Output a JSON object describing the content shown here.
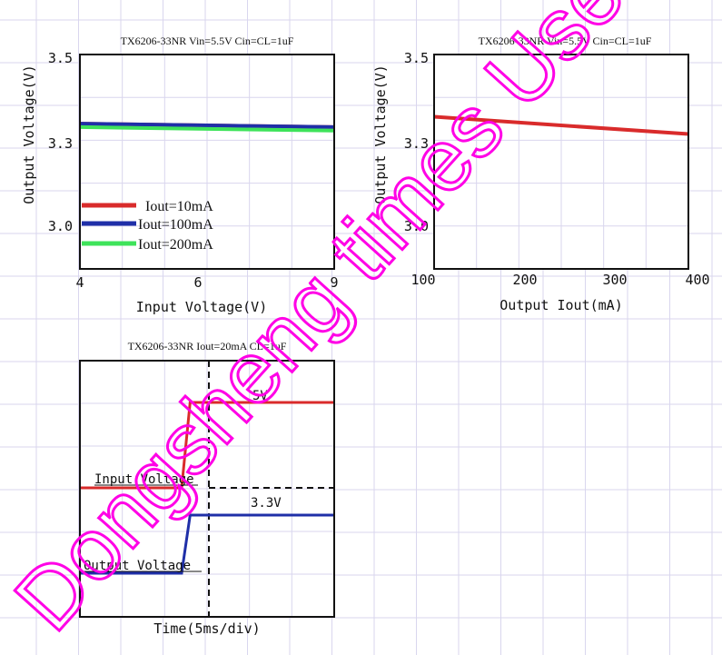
{
  "colors": {
    "grid": "#d9d6ee",
    "red": "#d92b2b",
    "blue": "#1f2fa8",
    "green": "#3ee35a",
    "axis": "#111111",
    "watermark": "#ff00e6"
  },
  "chart_data": [
    {
      "type": "line",
      "title": "TX6206-33NR Vin=5.5V Cin=CL=1uF",
      "xlabel": "Input Voltage(V)",
      "ylabel": "Output Voltage(V)",
      "xlim": [
        4,
        9
      ],
      "ylim": [
        2.88,
        3.5
      ],
      "xticks": [
        "4",
        "6",
        "9"
      ],
      "yticks": [
        "3.0",
        "3.3",
        "3.5"
      ],
      "grid": true,
      "legend_position": "bottom-left",
      "series": [
        {
          "name": "Iout=10mA",
          "color": "red",
          "x": [
            4,
            9
          ],
          "y": [
            3.3,
            3.29
          ]
        },
        {
          "name": "Iout=100mA",
          "color": "blue",
          "x": [
            4,
            9
          ],
          "y": [
            3.3,
            3.29
          ]
        },
        {
          "name": "Iout=200mA",
          "color": "green",
          "x": [
            4,
            9
          ],
          "y": [
            3.29,
            3.28
          ]
        }
      ]
    },
    {
      "type": "line",
      "title": "TX6206-33NR Vin=5.5V Cin=CL=1uF",
      "xlabel": "Output Iout(mA)",
      "ylabel": "Output Voltage(V)",
      "xlim": [
        100,
        400
      ],
      "ylim": [
        2.88,
        3.5
      ],
      "xticks": [
        "100",
        "200",
        "300",
        "400"
      ],
      "yticks": [
        "3.0",
        "3.3",
        "3.5"
      ],
      "grid": true,
      "series": [
        {
          "color": "red",
          "x": [
            100,
            400
          ],
          "y": [
            3.32,
            3.27
          ]
        }
      ]
    },
    {
      "type": "line",
      "title": "TX6206-33NR Iout=20mA CL=1uF",
      "xlabel": "Time(5ms/div)",
      "grid": true,
      "annotations": [
        "5V",
        "3.3V",
        "Input Voltage",
        "Output Voltage"
      ],
      "series": [
        {
          "name": "Input Voltage",
          "color": "red",
          "x": [
            0,
            2.4,
            2.6,
            6
          ],
          "y": [
            0,
            0,
            5,
            5
          ]
        },
        {
          "name": "Output Voltage",
          "color": "blue",
          "x": [
            0,
            2.4,
            2.6,
            6
          ],
          "y": [
            0,
            0,
            3.3,
            3.3
          ]
        }
      ]
    }
  ],
  "watermark": {
    "text": "Dongsheng times Use Only"
  }
}
